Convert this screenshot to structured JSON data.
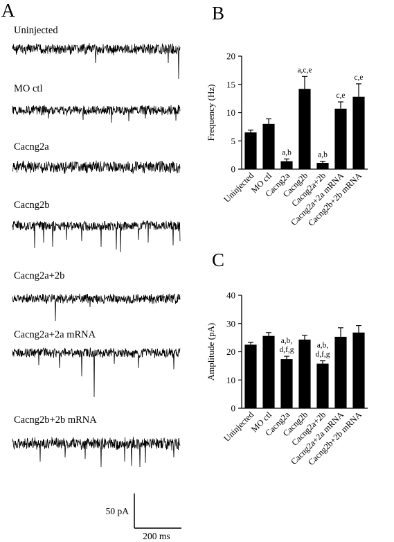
{
  "panel_letters": {
    "a": "A",
    "b": "B",
    "c": "C"
  },
  "traces": [
    {
      "label": "Uninjected",
      "noise": 9,
      "events": [
        [
          120,
          20
        ],
        [
          225,
          20
        ],
        [
          240,
          43
        ]
      ]
    },
    {
      "label": "MO ctl",
      "noise": 8,
      "events": [
        [
          52,
          12
        ],
        [
          102,
          14
        ],
        [
          143,
          18
        ],
        [
          168,
          16
        ],
        [
          192,
          12
        ],
        [
          236,
          15
        ]
      ]
    },
    {
      "label": "Cacng2a",
      "noise": 10,
      "events": [
        [
          75,
          10
        ],
        [
          160,
          8
        ]
      ]
    },
    {
      "label": "Cacng2b",
      "noise": 8,
      "events": [
        [
          32,
          32
        ],
        [
          45,
          24
        ],
        [
          58,
          30
        ],
        [
          78,
          20
        ],
        [
          100,
          22
        ],
        [
          128,
          30
        ],
        [
          150,
          34
        ],
        [
          156,
          38
        ],
        [
          182,
          20
        ],
        [
          196,
          24
        ],
        [
          232,
          28
        ],
        [
          242,
          22
        ]
      ]
    },
    {
      "label": "Cacng2a+2b",
      "noise": 8,
      "events": [
        [
          62,
          32
        ],
        [
          112,
          12
        ]
      ]
    },
    {
      "label": "Cacng2a+2a mRNA",
      "noise": 8,
      "events": [
        [
          38,
          18
        ],
        [
          68,
          22
        ],
        [
          100,
          34
        ],
        [
          118,
          64
        ],
        [
          147,
          16
        ],
        [
          182,
          22
        ],
        [
          233,
          24
        ]
      ]
    },
    {
      "label": "Cacng2b+2b mRNA",
      "noise": 10,
      "events": [
        [
          40,
          26
        ],
        [
          76,
          20
        ],
        [
          105,
          22
        ],
        [
          128,
          34
        ],
        [
          162,
          26
        ],
        [
          172,
          32
        ],
        [
          184,
          34
        ],
        [
          192,
          28
        ],
        [
          233,
          20
        ]
      ]
    }
  ],
  "scale_bar": {
    "amplitude": "50 pA",
    "time": "200 ms"
  },
  "chart_data": [
    {
      "panel": "B",
      "type": "bar",
      "categories": [
        "Uninjected",
        "MO ctl",
        "Cacng2a",
        "Cacng2b",
        "Cacng2a+2b",
        "Cacng2a+2a mRNA",
        "Cacng2b+2b mRNA"
      ],
      "values": [
        6.5,
        8.0,
        1.4,
        14.2,
        1.1,
        10.7,
        12.8
      ],
      "errors": [
        0.4,
        0.9,
        0.4,
        2.2,
        0.3,
        1.2,
        2.3
      ],
      "annotations": [
        [],
        [],
        [
          "a,b"
        ],
        [
          "a,c,e"
        ],
        [
          "a,b"
        ],
        [
          "c,e"
        ],
        [
          "c,e"
        ]
      ],
      "ylabel": "Frequency (Hz)",
      "ylim": [
        0,
        20
      ],
      "yticks": [
        0,
        5,
        10,
        15,
        20
      ],
      "grid": false
    },
    {
      "panel": "C",
      "type": "bar",
      "categories": [
        "Uninjected",
        "MO ctl",
        "Cacng2a",
        "Cacng2b",
        "Cacng2a+2b",
        "Cacng2a+2a mRNA",
        "Cacng2b+2b mRNA"
      ],
      "values": [
        22.5,
        25.6,
        17.4,
        24.3,
        15.8,
        25.3,
        26.8
      ],
      "errors": [
        0.8,
        1.2,
        1.0,
        1.5,
        1.0,
        3.2,
        2.5
      ],
      "annotations": [
        [],
        [],
        [
          "a,b,",
          "d,f,g"
        ],
        [],
        [
          "a,b,",
          "d,f,g"
        ],
        [],
        []
      ],
      "ylabel": "Amplitude (pA)",
      "ylim": [
        0,
        40
      ],
      "yticks": [
        0,
        10,
        20,
        30,
        40
      ],
      "grid": false
    }
  ]
}
